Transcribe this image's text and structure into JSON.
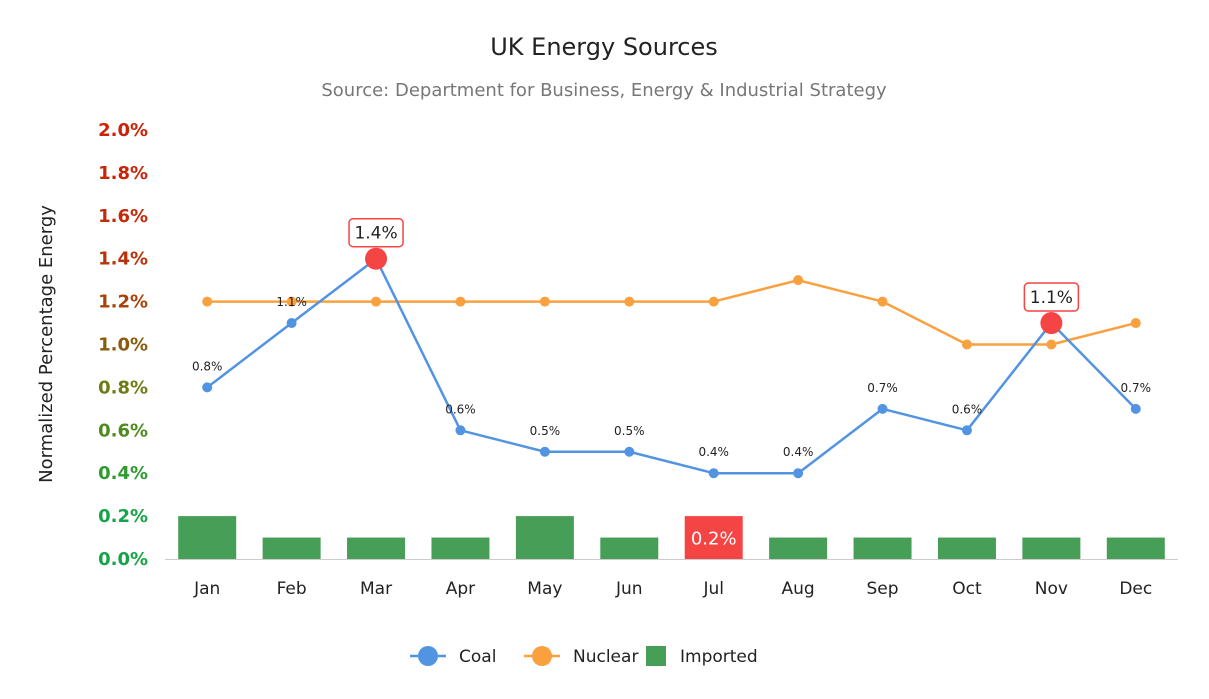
{
  "chart_data": {
    "type": "line",
    "title": "UK Energy Sources",
    "subtitle": "Source: Department for Business, Energy & Industrial Strategy",
    "ylabel": "Normalized Percentage Energy",
    "xlabel": "",
    "ylim": [
      0,
      2
    ],
    "y_ticks": [
      "0.0%",
      "0.2%",
      "0.4%",
      "0.6%",
      "0.8%",
      "1.0%",
      "1.2%",
      "1.4%",
      "1.6%",
      "1.8%",
      "2.0%"
    ],
    "y_tick_colors": [
      "#18a34a",
      "#18a34a",
      "#2f9a2f",
      "#4e8a1e",
      "#6e7a14",
      "#8a5a0e",
      "#a8420a",
      "#b8320a",
      "#c22a0a",
      "#c82508",
      "#cc2206"
    ],
    "categories": [
      "Jan",
      "Feb",
      "Mar",
      "Apr",
      "May",
      "Jun",
      "Jul",
      "Aug",
      "Sep",
      "Oct",
      "Nov",
      "Dec"
    ],
    "grid": false,
    "legend_position": "bottom",
    "series": [
      {
        "name": "Coal",
        "type": "line",
        "color": "#5294e2",
        "values": [
          0.8,
          1.1,
          1.4,
          0.6,
          0.5,
          0.5,
          0.4,
          0.4,
          0.7,
          0.6,
          1.1,
          0.7
        ],
        "labels": [
          "0.8%",
          "1.1%",
          "1.4%",
          "0.6%",
          "0.5%",
          "0.5%",
          "0.4%",
          "0.4%",
          "0.7%",
          "0.6%",
          "1.1%",
          "0.7%"
        ],
        "highlighted": [
          2,
          10
        ],
        "highlight_color": "#f44444"
      },
      {
        "name": "Nuclear",
        "type": "line",
        "color": "#f9a03f",
        "values": [
          1.2,
          1.2,
          1.2,
          1.2,
          1.2,
          1.2,
          1.2,
          1.3,
          1.2,
          1.0,
          1.0,
          1.1
        ]
      },
      {
        "name": "Imported",
        "type": "bar",
        "color": "#479e56",
        "values": [
          0.2,
          0.1,
          0.1,
          0.1,
          0.2,
          0.1,
          0.2,
          0.1,
          0.1,
          0.1,
          0.1,
          0.1
        ],
        "labels": [
          "",
          "",
          "",
          "",
          "",
          "",
          "0.2%",
          "",
          "",
          "",
          "",
          ""
        ],
        "highlighted": [
          6
        ],
        "highlight_color": "#f44444"
      }
    ]
  }
}
